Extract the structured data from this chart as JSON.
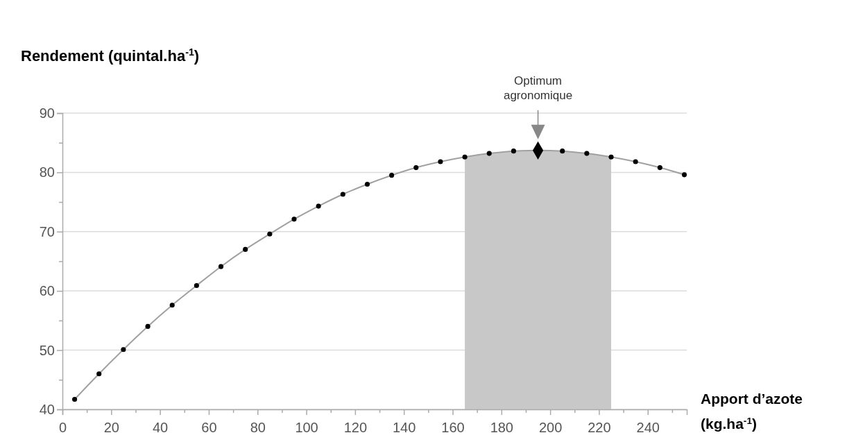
{
  "chart_data": {
    "type": "scatter",
    "xlabel": "Apport d’azote (kg.ha$^{-1}$)",
    "ylabel": "Rendement (quintal.ha$^{-1}$)",
    "annotations": [
      "Optimum agronomique"
    ],
    "xlim": [
      0,
      256
    ],
    "ylim": [
      40,
      90
    ],
    "xticks": [
      0,
      {
        "value": 10,
        "label": null
      },
      20,
      {
        "value": 30,
        "label": null
      },
      40,
      {
        "value": 50,
        "label": null
      },
      60,
      {
        "value": 70,
        "label": null
      },
      80,
      {
        "value": 90,
        "label": null
      },
      100,
      {
        "value": 110,
        "label": null
      },
      120,
      {
        "value": 130,
        "label": null
      },
      140,
      {
        "value": 150,
        "label": null
      },
      160,
      {
        "value": 170,
        "label": null
      },
      180,
      {
        "value": 190,
        "label": null
      },
      200,
      {
        "value": 210,
        "label": null
      },
      220,
      {
        "value": 230,
        "label": null
      },
      240,
      {
        "value": 250,
        "label": null
      }
    ],
    "yticks": [
      40,
      {
        "value": 45,
        "label": null
      },
      50,
      {
        "value": 55,
        "label": null
      },
      60,
      {
        "value": 65,
        "label": null
      },
      70,
      {
        "value": 75,
        "label": null
      },
      80,
      {
        "value": 85,
        "label": null
      },
      90
    ],
    "grid": "y",
    "bands": [
      {
        "axis": "x",
        "from": 165,
        "to": 225,
        "color": "#c8c8c8"
      }
    ],
    "series": [
      {
        "type": "line",
        "marker": "circle",
        "color": "#000000",
        "x": [
          5,
          15,
          25,
          35,
          45,
          55,
          65,
          75,
          85,
          95,
          105,
          115,
          125,
          135,
          145,
          155,
          165,
          175,
          185,
          195,
          205,
          215,
          225,
          235,
          245,
          255
        ],
        "values": [
          41.7,
          46,
          50.1,
          54,
          57.6,
          60.9,
          64.1,
          67,
          69.6,
          72.1,
          74.3,
          76.3,
          78,
          79.5,
          80.8,
          81.8,
          82.6,
          83.2,
          83.6,
          83.7,
          83.6,
          83.2,
          82.6,
          81.8,
          80.8,
          79.6
        ]
      },
      {
        "marker": "diamond",
        "color": "#000000",
        "x": [
          195
        ],
        "values": [
          83.7
        ]
      }
    ]
  }
}
